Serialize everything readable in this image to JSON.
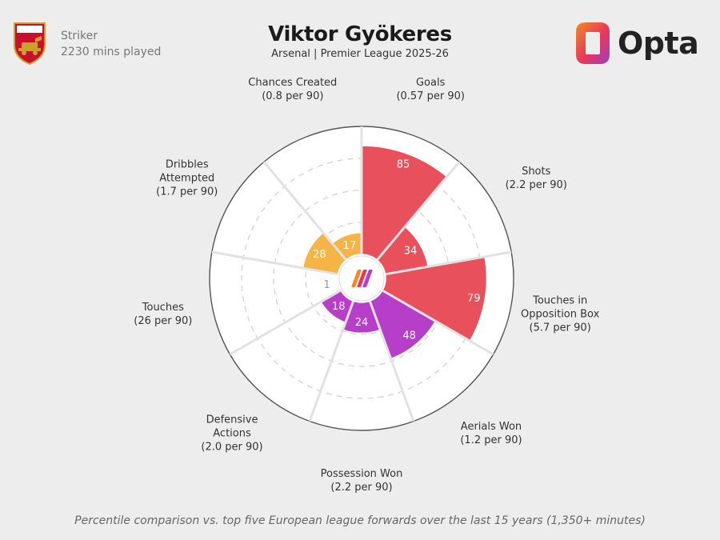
{
  "player": {
    "name": "Viktor Gyökeres",
    "team_season": "Arsenal | Premier League 2025-26",
    "position": "Striker",
    "minutes": "2230 mins played",
    "club_crest_text": "Arsenal"
  },
  "brand": {
    "name": "Opta"
  },
  "footnote": "Percentile comparison vs. top five European league forwards over the last 15 years (1,350+ minutes)",
  "colors": {
    "attacking": "#e8505b",
    "possession": "#f5b546",
    "defending": "#b63ec9",
    "background": "#ededed"
  },
  "chart_data": {
    "type": "polar-area",
    "scale": [
      0,
      100
    ],
    "grid": true,
    "categories": [
      {
        "label": "Goals",
        "rate": "(0.57 per 90)",
        "percentile": 85,
        "group": "attacking"
      },
      {
        "label": "Shots",
        "rate": "(2.2 per 90)",
        "percentile": 34,
        "group": "attacking"
      },
      {
        "label": "Touches in\nOpposition Box",
        "rate": "(5.7 per 90)",
        "percentile": 79,
        "group": "attacking"
      },
      {
        "label": "Aerials Won",
        "rate": "(1.2 per 90)",
        "percentile": 48,
        "group": "defending"
      },
      {
        "label": "Possession Won",
        "rate": "(2.2 per 90)",
        "percentile": 24,
        "group": "defending"
      },
      {
        "label": "Defensive\nActions",
        "rate": "(2.0 per 90)",
        "percentile": 18,
        "group": "defending"
      },
      {
        "label": "Touches",
        "rate": "(26 per 90)",
        "percentile": 1,
        "group": "possession"
      },
      {
        "label": "Dribbles\nAttempted",
        "rate": "(1.7 per 90)",
        "percentile": 28,
        "group": "possession"
      },
      {
        "label": "Chances Created",
        "rate": "(0.8 per 90)",
        "percentile": 17,
        "group": "possession"
      }
    ]
  }
}
